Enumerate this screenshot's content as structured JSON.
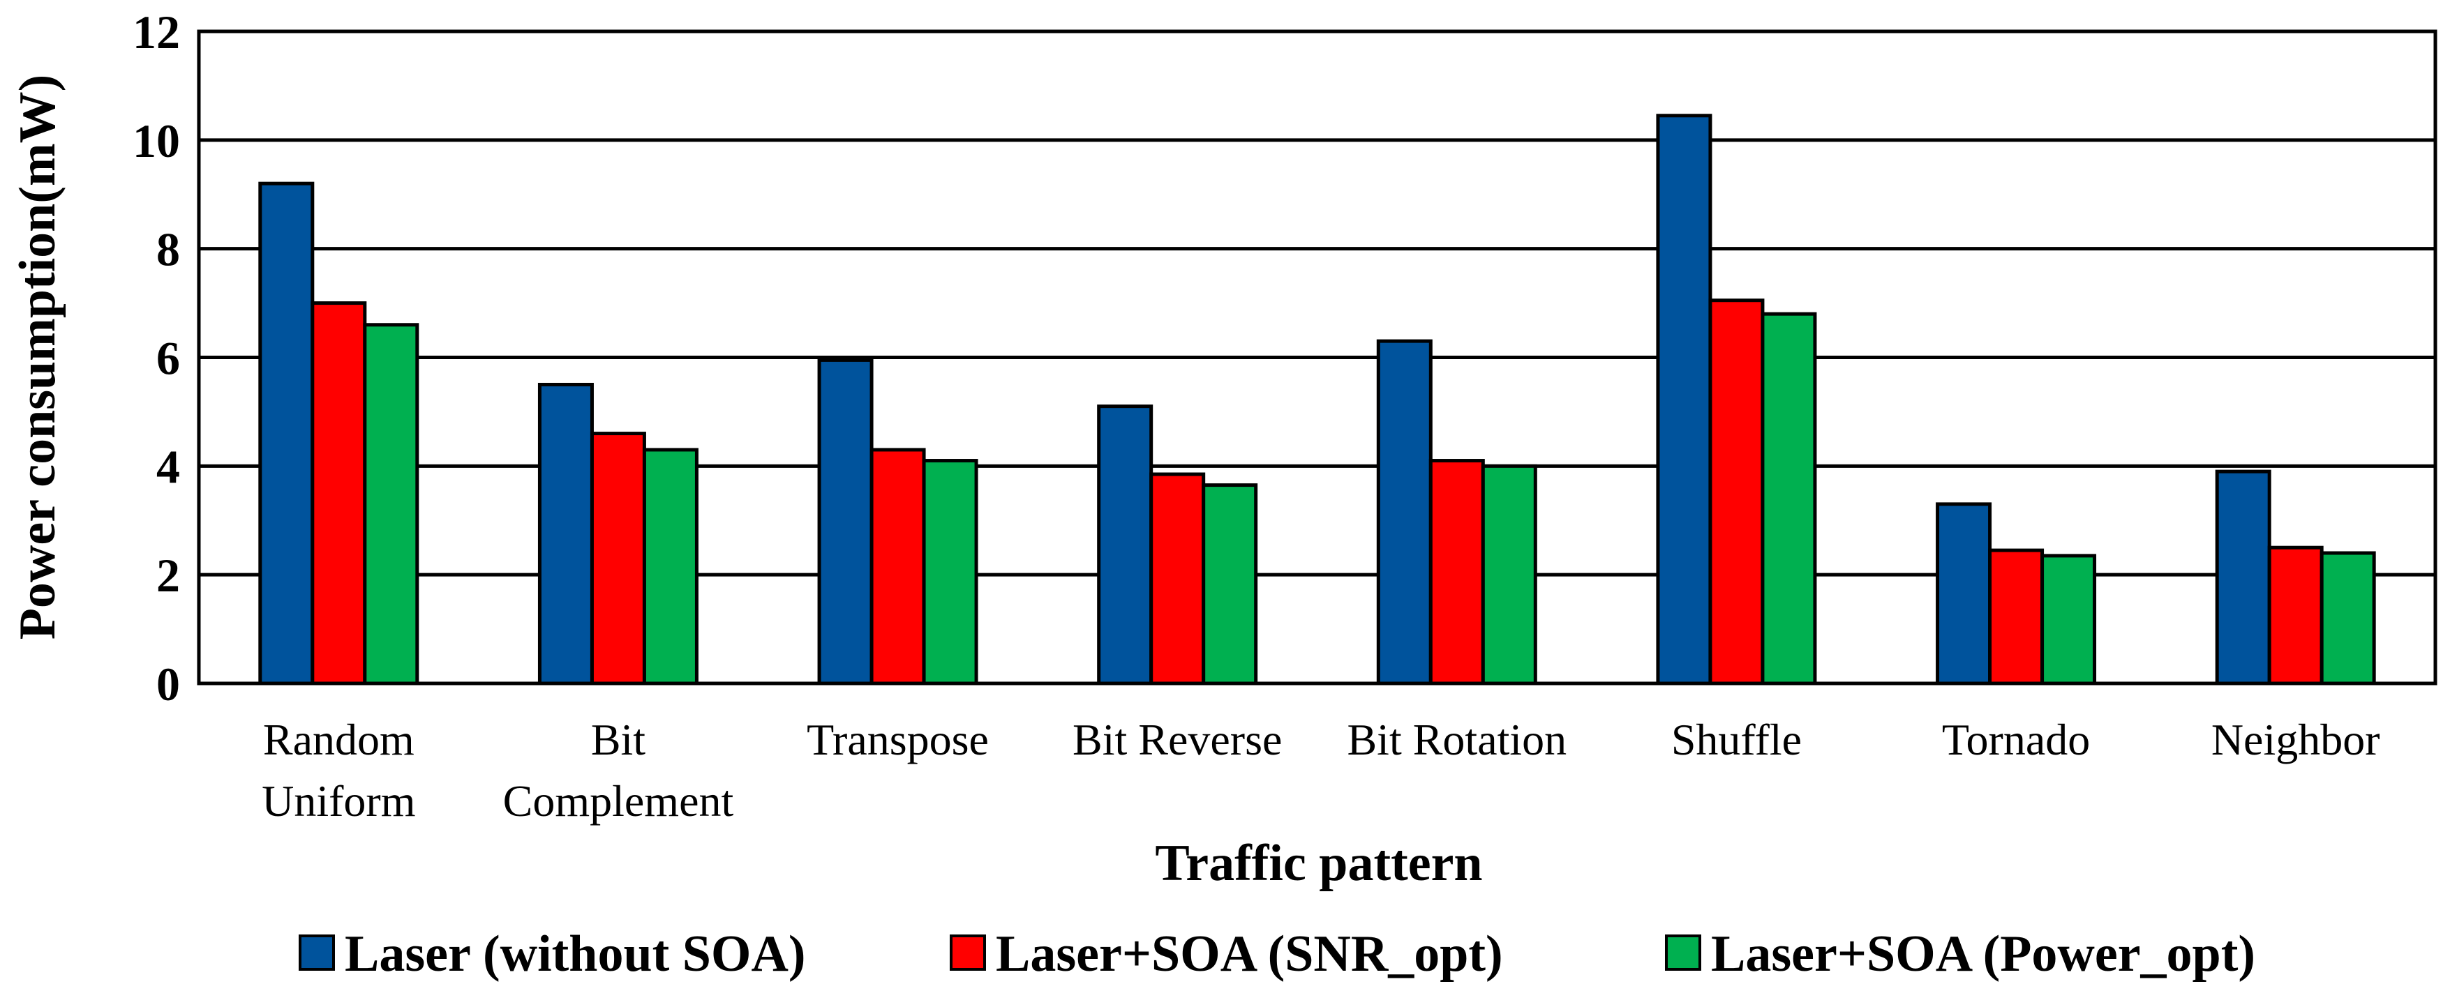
{
  "chart_data": {
    "type": "bar",
    "title": "",
    "xlabel": "Traffic pattern",
    "ylabel": "Power consumption(mW)",
    "ylim": [
      0,
      12
    ],
    "yticks": [
      0,
      2,
      4,
      6,
      8,
      10,
      12
    ],
    "grid": true,
    "legend_position": "bottom",
    "categories": [
      [
        "Random",
        "Uniform"
      ],
      [
        "Bit",
        "Complement"
      ],
      [
        "Transpose"
      ],
      [
        "Bit Reverse"
      ],
      [
        "Bit Rotation"
      ],
      [
        "Shuffle"
      ],
      [
        "Tornado"
      ],
      [
        "Neighbor"
      ]
    ],
    "series": [
      {
        "name": "Laser (without SOA)",
        "color": "#00539C",
        "values": [
          9.2,
          5.5,
          5.95,
          5.1,
          6.3,
          10.45,
          3.3,
          3.9
        ]
      },
      {
        "name": "Laser+SOA (SNR_opt)",
        "color": "#FF0000",
        "values": [
          7.0,
          4.6,
          4.3,
          3.85,
          4.1,
          7.05,
          2.45,
          2.5
        ]
      },
      {
        "name": "Laser+SOA (Power_opt)",
        "color": "#00B050",
        "values": [
          6.6,
          4.3,
          4.1,
          3.65,
          4.0,
          6.8,
          2.35,
          2.4
        ]
      }
    ]
  }
}
